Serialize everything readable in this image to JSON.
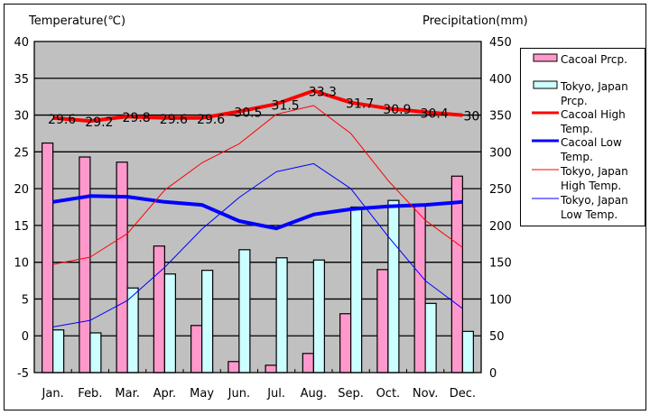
{
  "chart_data": {
    "type": "bar+line",
    "left_axis_title": "Temperature(℃)",
    "right_axis_title": "Precipitation(mm)",
    "categories": [
      "Jan.",
      "Feb.",
      "Mar.",
      "Apr.",
      "May",
      "Jun.",
      "Jul.",
      "Aug.",
      "Sep.",
      "Oct.",
      "Nov.",
      "Dec."
    ],
    "left_ylim": [
      -5,
      40
    ],
    "left_ticks": [
      40,
      35,
      30,
      25,
      20,
      15,
      10,
      5,
      0,
      -5
    ],
    "right_ylim": [
      0,
      450
    ],
    "right_ticks": [
      450,
      400,
      350,
      300,
      250,
      200,
      150,
      100,
      50,
      0
    ],
    "grid": true,
    "legend_position": "right",
    "series": [
      {
        "name": "Cacoal Prcp.",
        "kind": "bar",
        "axis": "right",
        "color": "#ff99cc",
        "values": [
          312,
          293,
          286,
          172,
          64,
          15,
          10,
          26,
          80,
          140,
          228,
          267
        ]
      },
      {
        "name": "Tokyo, Japan Prcp.",
        "kind": "bar",
        "axis": "right",
        "color": "#ccffff",
        "values": [
          58,
          54,
          115,
          134,
          139,
          167,
          156,
          153,
          225,
          234,
          94,
          56
        ]
      },
      {
        "name": "Cacoal High Temp.",
        "kind": "line",
        "axis": "left",
        "color": "#ff0000",
        "width": "thick",
        "values": [
          29.6,
          29.2,
          29.8,
          29.6,
          29.6,
          30.5,
          31.5,
          33.3,
          31.7,
          30.9,
          30.4,
          30
        ],
        "labels": [
          "29.6",
          "29.2",
          "29.8",
          "29.6",
          "29.6",
          "30.5",
          "31.5",
          "33.3",
          "31.7",
          "30.9",
          "30.4",
          "30"
        ]
      },
      {
        "name": "Cacoal Low Temp.",
        "kind": "line",
        "axis": "left",
        "color": "#0000ff",
        "width": "thick",
        "values": [
          18.2,
          19.0,
          18.9,
          18.2,
          17.8,
          15.6,
          14.6,
          16.5,
          17.2,
          17.6,
          17.8,
          18.2
        ]
      },
      {
        "name": "Tokyo, Japan High Temp.",
        "kind": "line",
        "axis": "left",
        "color": "#ff0000",
        "width": "thin",
        "values": [
          9.7,
          10.7,
          13.9,
          19.8,
          23.5,
          26.1,
          30.1,
          31.3,
          27.5,
          21.1,
          15.7,
          12.0
        ]
      },
      {
        "name": "Tokyo, Japan Low Temp.",
        "kind": "line",
        "axis": "left",
        "color": "#0000ff",
        "width": "thin",
        "values": [
          1.2,
          2.1,
          4.8,
          9.3,
          14.5,
          18.8,
          22.3,
          23.4,
          20.0,
          13.5,
          7.5,
          3.7
        ]
      }
    ],
    "legend": [
      {
        "lines": [
          "Cacoal Prcp."
        ],
        "kind": "bar",
        "color": "#ff99cc"
      },
      {
        "lines": [
          "Tokyo, Japan",
          "Prcp."
        ],
        "kind": "bar",
        "color": "#ccffff"
      },
      {
        "lines": [
          "Cacoal High",
          "Temp."
        ],
        "kind": "line",
        "color": "#ff0000",
        "width": "thick"
      },
      {
        "lines": [
          "Cacoal Low",
          "Temp."
        ],
        "kind": "line",
        "color": "#0000ff",
        "width": "thick"
      },
      {
        "lines": [
          "Tokyo, Japan",
          "High Temp."
        ],
        "kind": "line",
        "color": "#ff0000",
        "width": "thin"
      },
      {
        "lines": [
          "Tokyo, Japan",
          "Low Temp."
        ],
        "kind": "line",
        "color": "#0000ff",
        "width": "thin"
      }
    ],
    "colors": {
      "plot_bg": "#c0c0c0",
      "frame": "#000000"
    }
  }
}
